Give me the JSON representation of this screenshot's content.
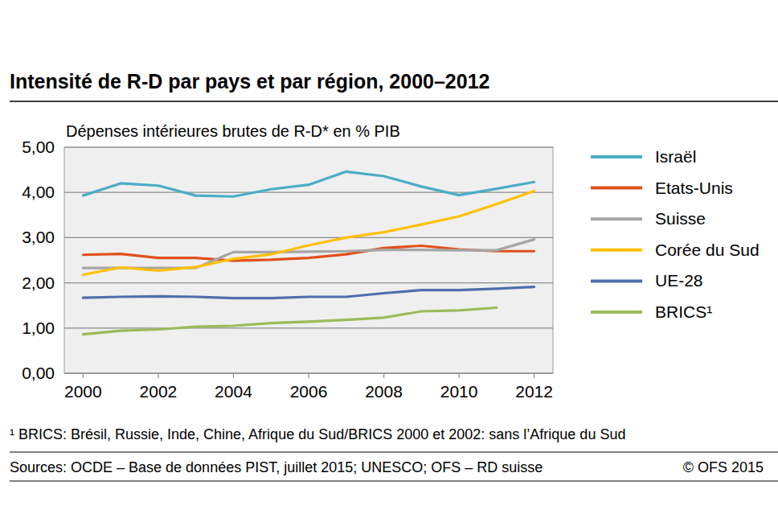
{
  "chart_data": {
    "type": "line",
    "title": "Intensité de R-D par pays et par région, 2000–2012",
    "ylabel": "Dépenses intérieures brutes de R-D* en % PIB",
    "footnote": "¹ BRICS: Brésil, Russie, Inde, Chine, Afrique du Sud/BRICS 2000 et 2002: sans l’Afrique du Sud",
    "source": "Sources: OCDE – Base de données PIST, juillet 2015; UNESCO; OFS – RD suisse",
    "copyright": "© OFS 2015",
    "x": [
      2000,
      2001,
      2002,
      2003,
      2004,
      2005,
      2006,
      2007,
      2008,
      2009,
      2010,
      2011,
      2012
    ],
    "xlim": [
      1999.5,
      2012.5
    ],
    "xticks": [
      2000,
      2002,
      2004,
      2006,
      2008,
      2010,
      2012
    ],
    "ylim": [
      0,
      5
    ],
    "yticks": [
      {
        "value": 0,
        "label": "0,00"
      },
      {
        "value": 1,
        "label": "1,00"
      },
      {
        "value": 2,
        "label": "2,00"
      },
      {
        "value": 3,
        "label": "3,00"
      },
      {
        "value": 4,
        "label": "4,00"
      },
      {
        "value": 5,
        "label": "5,00"
      }
    ],
    "grid": true,
    "legend": "right",
    "series": [
      {
        "name": "Israël",
        "color": "#4bacc6",
        "values": [
          3.93,
          4.2,
          4.15,
          3.93,
          3.91,
          4.07,
          4.17,
          4.46,
          4.36,
          4.13,
          3.94,
          4.08,
          4.23
        ]
      },
      {
        "name": "Etats-Unis",
        "color": "#e0501c",
        "values": [
          2.62,
          2.64,
          2.55,
          2.55,
          2.49,
          2.51,
          2.55,
          2.63,
          2.77,
          2.82,
          2.74,
          2.7,
          2.7
        ]
      },
      {
        "name": "Suisse",
        "color": "#a5a5a5",
        "values": [
          2.33,
          2.33,
          2.33,
          2.33,
          2.68,
          2.68,
          2.69,
          2.7,
          2.73,
          2.73,
          2.72,
          2.72,
          2.96
        ]
      },
      {
        "name": "Corée du Sud",
        "color": "#ffc000",
        "values": [
          2.18,
          2.34,
          2.27,
          2.35,
          2.53,
          2.63,
          2.83,
          3.0,
          3.12,
          3.29,
          3.47,
          3.74,
          4.03
        ]
      },
      {
        "name": "UE-28",
        "color": "#4f6fad",
        "values": [
          1.67,
          1.69,
          1.7,
          1.69,
          1.66,
          1.66,
          1.69,
          1.69,
          1.77,
          1.84,
          1.84,
          1.87,
          1.91
        ]
      },
      {
        "name": "BRICS¹",
        "color": "#9bbb59",
        "values": [
          0.86,
          0.94,
          0.97,
          1.03,
          1.05,
          1.11,
          1.14,
          1.18,
          1.23,
          1.37,
          1.39,
          1.45,
          null
        ]
      }
    ]
  }
}
